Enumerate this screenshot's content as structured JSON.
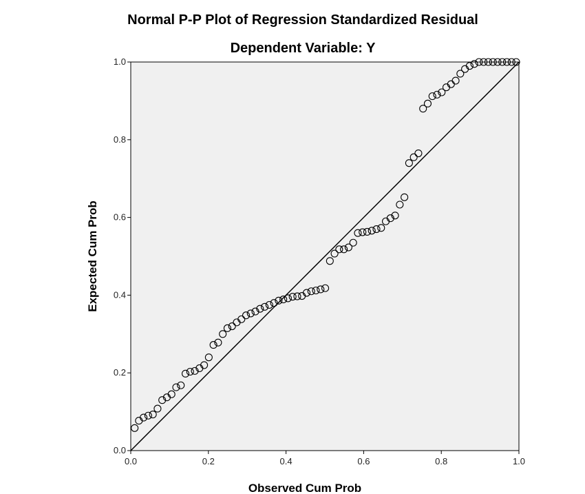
{
  "chart_data": {
    "type": "scatter",
    "title": "Normal P-P Plot of Regression Standardized Residual",
    "subtitle": "Dependent Variable: Y",
    "xlabel": "Observed Cum Prob",
    "ylabel": "Expected Cum Prob",
    "xlim": [
      0,
      1
    ],
    "ylim": [
      0,
      1
    ],
    "x_ticks": [
      "0.0",
      "0.2",
      "0.4",
      "0.6",
      "0.8",
      "1.0"
    ],
    "y_ticks": [
      "0.0",
      "0.2",
      "0.4",
      "0.6",
      "0.8",
      "1.0"
    ],
    "reference_line": [
      [
        0,
        0
      ],
      [
        1,
        1
      ]
    ],
    "grid": false,
    "colors": {
      "plot_bg": "#f0f0f0",
      "marker_stroke": "#000000",
      "line": "#000000"
    },
    "x": [
      0.01,
      0.021,
      0.033,
      0.045,
      0.057,
      0.069,
      0.081,
      0.093,
      0.105,
      0.117,
      0.129,
      0.141,
      0.153,
      0.165,
      0.177,
      0.189,
      0.201,
      0.213,
      0.225,
      0.237,
      0.249,
      0.261,
      0.273,
      0.285,
      0.297,
      0.309,
      0.321,
      0.333,
      0.345,
      0.357,
      0.369,
      0.381,
      0.393,
      0.405,
      0.417,
      0.429,
      0.441,
      0.453,
      0.465,
      0.477,
      0.489,
      0.501,
      0.513,
      0.525,
      0.537,
      0.549,
      0.561,
      0.573,
      0.585,
      0.597,
      0.609,
      0.621,
      0.633,
      0.645,
      0.657,
      0.669,
      0.681,
      0.693,
      0.705,
      0.717,
      0.729,
      0.741,
      0.753,
      0.765,
      0.777,
      0.789,
      0.801,
      0.813,
      0.825,
      0.837,
      0.849,
      0.861,
      0.873,
      0.885,
      0.897,
      0.909,
      0.921,
      0.933,
      0.945,
      0.957,
      0.969,
      0.981,
      0.993
    ],
    "y": [
      0.058,
      0.077,
      0.085,
      0.09,
      0.093,
      0.108,
      0.13,
      0.137,
      0.145,
      0.163,
      0.168,
      0.198,
      0.203,
      0.205,
      0.212,
      0.22,
      0.24,
      0.272,
      0.278,
      0.3,
      0.315,
      0.32,
      0.33,
      0.338,
      0.348,
      0.353,
      0.358,
      0.365,
      0.37,
      0.375,
      0.38,
      0.386,
      0.389,
      0.392,
      0.396,
      0.397,
      0.398,
      0.406,
      0.41,
      0.412,
      0.415,
      0.418,
      0.488,
      0.507,
      0.518,
      0.518,
      0.523,
      0.535,
      0.56,
      0.562,
      0.563,
      0.566,
      0.57,
      0.573,
      0.59,
      0.598,
      0.605,
      0.633,
      0.652,
      0.74,
      0.755,
      0.765,
      0.88,
      0.893,
      0.912,
      0.916,
      0.922,
      0.935,
      0.943,
      0.952,
      0.97,
      0.982,
      0.99,
      0.995,
      1.0,
      1.0,
      1.0,
      1.0,
      1.0,
      1.0,
      1.0,
      1.0,
      1.0
    ]
  }
}
